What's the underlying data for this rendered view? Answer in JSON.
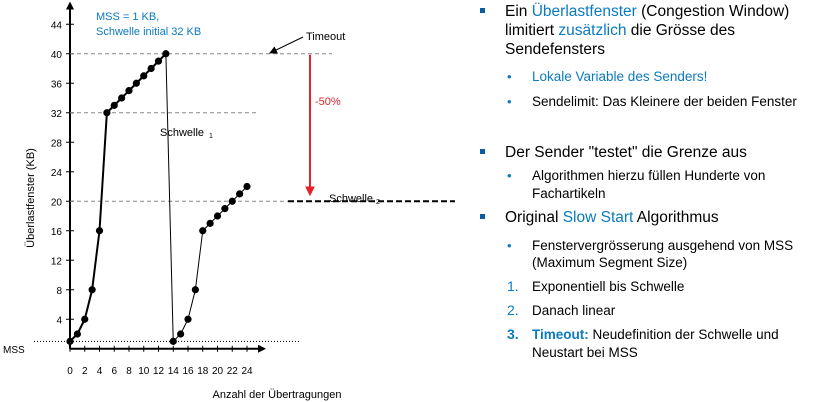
{
  "colors": {
    "accent": "#0b7abf",
    "marker": "#0b5c9e",
    "arrow": "#e8202a"
  },
  "chart_data": {
    "type": "line",
    "xlabel": "Anzahl der Übertragungen",
    "ylabel": "Überlastfenster (KB)",
    "xlim": [
      0,
      25.5
    ],
    "ylim": [
      0,
      46
    ],
    "xticks": [
      0,
      2,
      4,
      6,
      8,
      10,
      12,
      14,
      16,
      18,
      20,
      22,
      24
    ],
    "yticks": [
      4,
      8,
      12,
      16,
      20,
      24,
      28,
      32,
      36,
      40,
      44
    ],
    "series": [
      {
        "x": [
          0,
          1,
          2,
          3,
          4,
          5,
          6,
          7,
          8,
          9,
          10,
          11,
          12,
          13,
          14,
          15,
          16,
          17,
          18,
          19,
          20,
          21,
          22,
          23,
          24
        ],
        "y": [
          1,
          2,
          4,
          8,
          16,
          32,
          33,
          34,
          35,
          36,
          37,
          38,
          39,
          40,
          1,
          2,
          4,
          8,
          16,
          17,
          18,
          19,
          20,
          21,
          22
        ]
      }
    ],
    "reference_lines": [
      {
        "y": 40,
        "style": "dashed"
      },
      {
        "y": 32,
        "style": "dashed"
      },
      {
        "y": 20,
        "style": "dashed"
      },
      {
        "y": 1,
        "style": "dotted",
        "label": "MSS"
      }
    ],
    "annotations": {
      "info_line1": "MSS = 1 KB,",
      "info_line2": "Schwelle initial 32 KB",
      "timeout": "Timeout",
      "drop": "-50%",
      "schwelle1": "Schwelle",
      "schwelle1_sub": "1",
      "schwelle2": "Schwelle",
      "schwelle2_sub": "2",
      "mss": "MSS"
    },
    "grid": false,
    "legend": "none"
  },
  "bullets": [
    {
      "level": 1,
      "parts": [
        {
          "t": "Ein "
        },
        {
          "t": "Überlastfenster",
          "c": "blue"
        },
        {
          "t": " (Congestion Window)"
        }
      ]
    },
    {
      "level": 1,
      "cont": true,
      "parts": [
        {
          "t": "limitiert "
        },
        {
          "t": "zusätzlich",
          "c": "blue"
        },
        {
          "t": " die Grösse des"
        }
      ]
    },
    {
      "level": 1,
      "cont": true,
      "parts": [
        {
          "t": "Sendefensters"
        }
      ]
    },
    {
      "level": 2,
      "marker": "•",
      "parts": [
        {
          "t": "Lokale Variable des Senders!",
          "c": "blue"
        }
      ]
    },
    {
      "level": 2,
      "marker": "•",
      "parts": [
        {
          "t": "Sendelimit: Das Kleinere der beiden Fenster"
        }
      ]
    },
    {
      "level": 1,
      "parts": [
        {
          "t": "Der Sender \"testet\" die Grenze aus"
        }
      ]
    },
    {
      "level": 2,
      "marker": "•",
      "parts": [
        {
          "t": "Algorithmen hierzu füllen Hunderte von"
        }
      ]
    },
    {
      "level": 2,
      "cont": true,
      "parts": [
        {
          "t": "Fachartikeln"
        }
      ]
    },
    {
      "level": 1,
      "parts": [
        {
          "t": "Original "
        },
        {
          "t": "Slow Start",
          "c": "blue"
        },
        {
          "t": " Algorithmus"
        }
      ]
    },
    {
      "level": 2,
      "marker": "•",
      "parts": [
        {
          "t": "Fenstervergrösserung ausgehend von MSS"
        }
      ]
    },
    {
      "level": 2,
      "cont": true,
      "parts": [
        {
          "t": "(Maximum Segment Size)"
        }
      ]
    },
    {
      "level": 2,
      "marker": "1.",
      "parts": [
        {
          "t": "Exponentiell bis Schwelle"
        }
      ]
    },
    {
      "level": 2,
      "marker": "2.",
      "parts": [
        {
          "t": "Danach linear"
        }
      ]
    },
    {
      "level": 2,
      "marker": "3.",
      "markerBold": true,
      "parts": [
        {
          "t": "Timeout:",
          "c": "blue bold"
        },
        {
          "t": " Neudefinition der Schwelle und"
        }
      ]
    },
    {
      "level": 2,
      "cont": true,
      "parts": [
        {
          "t": "Neustart bei MSS"
        }
      ]
    }
  ]
}
